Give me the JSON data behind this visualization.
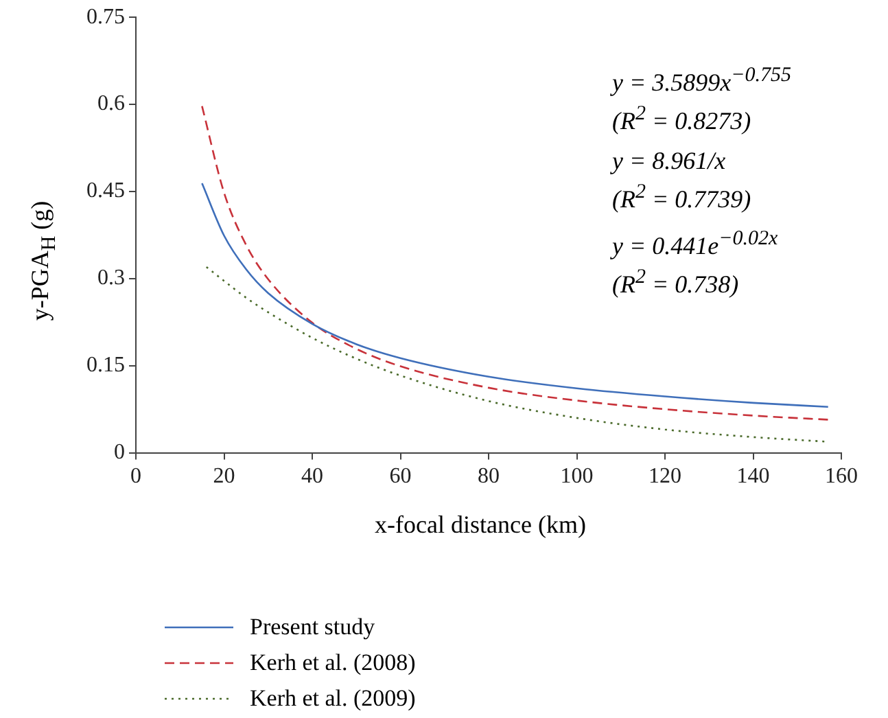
{
  "chart_data": {
    "type": "line",
    "xlabel": "x-focal distance (km)",
    "ylabel": "y-PGA$_{H}$ (g)",
    "xlim": [
      0,
      160
    ],
    "xticks": [
      0,
      20,
      40,
      60,
      80,
      100,
      120,
      140,
      160
    ],
    "ylim": [
      0,
      0.75
    ],
    "yticks": [
      0,
      0.15,
      0.3,
      0.45,
      0.6,
      0.75
    ],
    "grid": false,
    "legend": "bottom left",
    "marker": "none",
    "annotations": [
      "y = 3.5899x$^{−0.755}$",
      "(R$^{2}$ = 0.8273)",
      "y = 8.961/x",
      "(R$^{2}$ = 0.7739)",
      "y = 0.441e$^{−0.02x}$",
      "(R$^{2}$ = 0.738)"
    ],
    "series": [
      {
        "name": "Present study",
        "color": "#3f6fba",
        "line_style": "solid",
        "x": [
          15,
          20,
          25,
          30,
          40,
          50,
          60,
          80,
          100,
          120,
          140,
          157
        ],
        "values": [
          0.464,
          0.374,
          0.316,
          0.275,
          0.222,
          0.187,
          0.163,
          0.131,
          0.111,
          0.097,
          0.086,
          0.079
        ]
      },
      {
        "name": "Kerh et al. (2008)",
        "color": "#c8323a",
        "line_style": "dashed",
        "x": [
          15,
          20,
          25,
          30,
          40,
          50,
          60,
          80,
          100,
          120,
          140,
          157
        ],
        "values": [
          0.597,
          0.448,
          0.358,
          0.299,
          0.224,
          0.179,
          0.149,
          0.112,
          0.09,
          0.075,
          0.064,
          0.057
        ]
      },
      {
        "name": "Kerh et al. (2009)",
        "color": "#4a6a2a",
        "line_style": "dotted",
        "x": [
          16,
          20,
          25,
          30,
          40,
          50,
          60,
          80,
          100,
          120,
          140,
          157
        ],
        "values": [
          0.32,
          0.296,
          0.267,
          0.242,
          0.198,
          0.162,
          0.133,
          0.089,
          0.06,
          0.04,
          0.027,
          0.019
        ]
      }
    ]
  }
}
